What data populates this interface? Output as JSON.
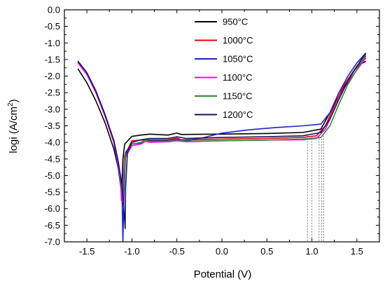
{
  "chart_data": {
    "type": "line",
    "xlabel": "Potential (V)",
    "ylabel": "logi (A/cm",
    "ylabel_sup": "2",
    "ylabel_close": ")",
    "xlim": [
      -1.75,
      1.75
    ],
    "ylim": [
      -7.0,
      0.0
    ],
    "x_ticks": [
      -1.5,
      -1.0,
      -0.5,
      0.0,
      0.5,
      1.0,
      1.5
    ],
    "x_tick_labels": [
      "-1.5",
      "-1.0",
      "-0.5",
      "0.0",
      "0.5",
      "1.0",
      "1.5"
    ],
    "y_ticks": [
      0.0,
      -0.5,
      -1.0,
      -1.5,
      -2.0,
      -2.5,
      -3.0,
      -3.5,
      -4.0,
      -4.5,
      -5.0,
      -5.5,
      -6.0,
      -6.5,
      -7.0
    ],
    "y_tick_labels": [
      "0.0",
      "-0.5",
      "-1.0",
      "-1.5",
      "-2.0",
      "-2.5",
      "-3.0",
      "-3.5",
      "-4.0",
      "-4.5",
      "-5.0",
      "-5.5",
      "-6.0",
      "-6.5",
      "-7.0"
    ],
    "legend_position": "top-center",
    "pitting_markers_x": [
      0.95,
      1.0,
      1.08,
      1.11,
      1.13
    ],
    "series": [
      {
        "name": "950°C",
        "color": "#000000",
        "points": [
          [
            -1.6,
            -1.78
          ],
          [
            -1.5,
            -2.2
          ],
          [
            -1.4,
            -2.75
          ],
          [
            -1.3,
            -3.4
          ],
          [
            -1.2,
            -4.2
          ],
          [
            -1.15,
            -4.8
          ],
          [
            -1.12,
            -5.4
          ],
          [
            -1.115,
            -5.75
          ],
          [
            -1.11,
            -5.2
          ],
          [
            -1.1,
            -4.5
          ],
          [
            -1.08,
            -4.05
          ],
          [
            -1.0,
            -3.82
          ],
          [
            -0.9,
            -3.78
          ],
          [
            -0.8,
            -3.75
          ],
          [
            -0.6,
            -3.78
          ],
          [
            -0.5,
            -3.72
          ],
          [
            -0.45,
            -3.76
          ],
          [
            0.0,
            -3.75
          ],
          [
            0.5,
            -3.73
          ],
          [
            0.9,
            -3.7
          ],
          [
            1.1,
            -3.6
          ],
          [
            1.2,
            -3.1
          ],
          [
            1.3,
            -2.6
          ],
          [
            1.4,
            -2.1
          ],
          [
            1.5,
            -1.7
          ],
          [
            1.6,
            -1.55
          ]
        ]
      },
      {
        "name": "1000°C",
        "color": "#e8000b",
        "points": [
          [
            -1.6,
            -1.58
          ],
          [
            -1.5,
            -1.95
          ],
          [
            -1.4,
            -2.5
          ],
          [
            -1.3,
            -3.2
          ],
          [
            -1.2,
            -4.0
          ],
          [
            -1.15,
            -4.7
          ],
          [
            -1.12,
            -5.4
          ],
          [
            -1.105,
            -5.9
          ],
          [
            -1.1,
            -5.3
          ],
          [
            -1.08,
            -4.4
          ],
          [
            -1.0,
            -3.95
          ],
          [
            -0.9,
            -3.93
          ],
          [
            -0.8,
            -3.92
          ],
          [
            -0.6,
            -3.92
          ],
          [
            -0.5,
            -3.87
          ],
          [
            -0.45,
            -3.92
          ],
          [
            0.0,
            -3.9
          ],
          [
            0.5,
            -3.88
          ],
          [
            0.9,
            -3.85
          ],
          [
            1.05,
            -3.8
          ],
          [
            1.15,
            -3.5
          ],
          [
            1.25,
            -2.9
          ],
          [
            1.35,
            -2.3
          ],
          [
            1.45,
            -1.9
          ],
          [
            1.6,
            -1.4
          ]
        ]
      },
      {
        "name": "1050°C",
        "color": "#1f1fcf",
        "points": [
          [
            -1.6,
            -1.55
          ],
          [
            -1.5,
            -1.9
          ],
          [
            -1.4,
            -2.45
          ],
          [
            -1.3,
            -3.15
          ],
          [
            -1.2,
            -4.0
          ],
          [
            -1.15,
            -4.8
          ],
          [
            -1.11,
            -5.6
          ],
          [
            -1.1,
            -7.0
          ],
          [
            -1.09,
            -5.6
          ],
          [
            -1.07,
            -4.3
          ],
          [
            -1.0,
            -4.05
          ],
          [
            -0.9,
            -4.02
          ],
          [
            -0.85,
            -3.92
          ],
          [
            -0.8,
            -3.95
          ],
          [
            -0.6,
            -3.95
          ],
          [
            -0.5,
            -3.9
          ],
          [
            -0.4,
            -3.95
          ],
          [
            -0.2,
            -3.85
          ],
          [
            0.0,
            -3.72
          ],
          [
            0.3,
            -3.62
          ],
          [
            0.6,
            -3.55
          ],
          [
            0.9,
            -3.5
          ],
          [
            1.1,
            -3.45
          ],
          [
            1.2,
            -3.1
          ],
          [
            1.3,
            -2.5
          ],
          [
            1.4,
            -2.0
          ],
          [
            1.5,
            -1.6
          ],
          [
            1.6,
            -1.3
          ]
        ]
      },
      {
        "name": "1100°C",
        "color": "#ff00ff",
        "points": [
          [
            -1.6,
            -1.6
          ],
          [
            -1.5,
            -1.95
          ],
          [
            -1.4,
            -2.5
          ],
          [
            -1.3,
            -3.2
          ],
          [
            -1.2,
            -4.0
          ],
          [
            -1.15,
            -4.7
          ],
          [
            -1.12,
            -5.3
          ],
          [
            -1.11,
            -5.8
          ],
          [
            -1.1,
            -5.3
          ],
          [
            -1.08,
            -4.5
          ],
          [
            -1.0,
            -4.1
          ],
          [
            -0.9,
            -4.05
          ],
          [
            -0.85,
            -3.97
          ],
          [
            -0.8,
            -4.0
          ],
          [
            -0.6,
            -3.98
          ],
          [
            -0.5,
            -3.95
          ],
          [
            -0.4,
            -3.98
          ],
          [
            0.0,
            -3.95
          ],
          [
            0.5,
            -3.93
          ],
          [
            0.9,
            -3.92
          ],
          [
            1.05,
            -3.88
          ],
          [
            1.15,
            -3.6
          ],
          [
            1.25,
            -3.0
          ],
          [
            1.35,
            -2.4
          ],
          [
            1.45,
            -2.0
          ],
          [
            1.6,
            -1.45
          ]
        ]
      },
      {
        "name": "1150°C",
        "color": "#2e8b2e",
        "points": [
          [
            -1.6,
            -1.55
          ],
          [
            -1.5,
            -1.9
          ],
          [
            -1.4,
            -2.45
          ],
          [
            -1.3,
            -3.15
          ],
          [
            -1.2,
            -3.95
          ],
          [
            -1.15,
            -4.6
          ],
          [
            -1.12,
            -5.2
          ],
          [
            -1.1,
            -5.6
          ],
          [
            -1.09,
            -5.1
          ],
          [
            -1.07,
            -4.4
          ],
          [
            -1.0,
            -4.05
          ],
          [
            -0.9,
            -4.0
          ],
          [
            -0.85,
            -3.93
          ],
          [
            -0.8,
            -3.97
          ],
          [
            -0.6,
            -3.96
          ],
          [
            -0.5,
            -3.92
          ],
          [
            -0.4,
            -3.96
          ],
          [
            0.0,
            -3.95
          ],
          [
            0.5,
            -3.93
          ],
          [
            0.9,
            -3.9
          ],
          [
            1.1,
            -3.85
          ],
          [
            1.2,
            -3.5
          ],
          [
            1.3,
            -2.85
          ],
          [
            1.4,
            -2.25
          ],
          [
            1.5,
            -1.8
          ],
          [
            1.6,
            -1.35
          ]
        ]
      },
      {
        "name": "1200°C",
        "color": "#14145a",
        "points": [
          [
            -1.6,
            -1.55
          ],
          [
            -1.5,
            -1.9
          ],
          [
            -1.4,
            -2.45
          ],
          [
            -1.3,
            -3.15
          ],
          [
            -1.2,
            -3.95
          ],
          [
            -1.15,
            -4.6
          ],
          [
            -1.11,
            -5.3
          ],
          [
            -1.09,
            -6.0
          ],
          [
            -1.075,
            -6.6
          ],
          [
            -1.07,
            -5.4
          ],
          [
            -1.05,
            -4.3
          ],
          [
            -1.0,
            -4.0
          ],
          [
            -0.9,
            -3.92
          ],
          [
            -0.8,
            -3.88
          ],
          [
            -0.6,
            -3.88
          ],
          [
            -0.5,
            -3.83
          ],
          [
            -0.4,
            -3.88
          ],
          [
            0.0,
            -3.85
          ],
          [
            0.5,
            -3.83
          ],
          [
            0.9,
            -3.8
          ],
          [
            1.1,
            -3.7
          ],
          [
            1.2,
            -3.3
          ],
          [
            1.3,
            -2.7
          ],
          [
            1.4,
            -2.15
          ],
          [
            1.5,
            -1.7
          ],
          [
            1.6,
            -1.3
          ]
        ]
      }
    ]
  }
}
